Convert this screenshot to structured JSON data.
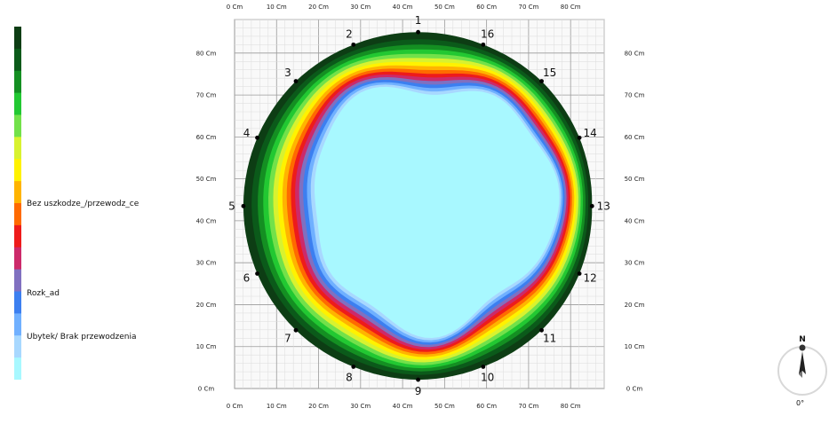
{
  "chart_data": {
    "type": "heatmap",
    "title": "",
    "xlabel": "",
    "ylabel": "",
    "x_ticks": [
      "0 Cm",
      "10 Cm",
      "20 Cm",
      "30 Cm",
      "40 Cm",
      "50 Cm",
      "60 Cm",
      "70 Cm",
      "80 Cm"
    ],
    "y_ticks": [
      "0 Cm",
      "10 Cm",
      "20 Cm",
      "30 Cm",
      "40 Cm",
      "50 Cm",
      "60 Cm",
      "70 Cm",
      "80 Cm"
    ],
    "xlim": [
      0,
      88
    ],
    "ylim": [
      0,
      88
    ],
    "grid": true,
    "legend_position": "left",
    "legend": [
      {
        "label": "Bez uszkodze_/przewodz_ce",
        "level": 0.48
      },
      {
        "label": "Rozk_ad",
        "level": 0.75
      },
      {
        "label": "Ubytek/ Brak przewodzenia",
        "level": 0.88
      }
    ],
    "colorscale": [
      "#0d3d14",
      "#0b5a1a",
      "#148f22",
      "#22c832",
      "#72e14a",
      "#d8f230",
      "#fff200",
      "#ffb400",
      "#ff6a00",
      "#ee1b1b",
      "#cc2a6a",
      "#8070c0",
      "#3c7ff0",
      "#70b0ff",
      "#a8d8ff",
      "#a8f8ff"
    ],
    "sensors": [
      {
        "label": "1",
        "x": 43.7,
        "y": 85.0
      },
      {
        "label": "2",
        "x": 28.3,
        "y": 82.0
      },
      {
        "label": "3",
        "x": 14.6,
        "y": 73.3
      },
      {
        "label": "4",
        "x": 5.4,
        "y": 59.8
      },
      {
        "label": "5",
        "x": 2.1,
        "y": 43.5
      },
      {
        "label": "6",
        "x": 5.4,
        "y": 27.4
      },
      {
        "label": "7",
        "x": 14.6,
        "y": 13.9
      },
      {
        "label": "8",
        "x": 28.3,
        "y": 5.2
      },
      {
        "label": "9",
        "x": 43.7,
        "y": 2.1
      },
      {
        "label": "10",
        "x": 59.2,
        "y": 5.2
      },
      {
        "label": "11",
        "x": 73.1,
        "y": 13.9
      },
      {
        "label": "12",
        "x": 82.1,
        "y": 27.4
      },
      {
        "label": "13",
        "x": 85.1,
        "y": 43.5
      },
      {
        "label": "14",
        "x": 82.1,
        "y": 59.8
      },
      {
        "label": "15",
        "x": 73.1,
        "y": 73.3
      },
      {
        "label": "16",
        "x": 59.2,
        "y": 82.0
      }
    ],
    "decay_region": {
      "center": [
        47,
        44
      ],
      "radius": 29
    }
  },
  "compass": {
    "north_label": "N",
    "bearing": "0°"
  }
}
